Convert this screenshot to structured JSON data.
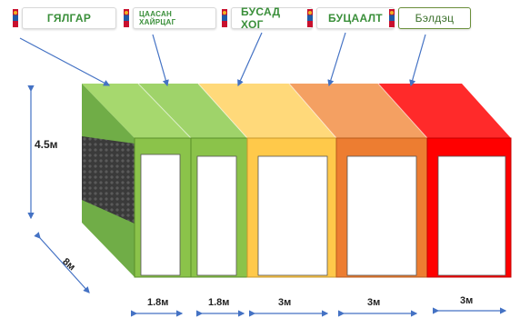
{
  "tags": [
    {
      "text": "ГЯЛГАР",
      "color": "#3a8f3a"
    },
    {
      "text": "ЦААСАН ХАЙРЦАГ",
      "color": "#3a8f3a"
    },
    {
      "text": "БУСАД ХОГ",
      "color": "#3a8f3a"
    },
    {
      "text": "БУЦААЛТ",
      "color": "#3a8f3a"
    },
    {
      "text": "Бэлдэц",
      "color": "#3a6f2a"
    }
  ],
  "dimensions": {
    "height": "4.5м",
    "depth": "8м",
    "widths": [
      "1.8м",
      "1.8м",
      "3м",
      "3м",
      "3м"
    ]
  },
  "compartment_colors": {
    "green_roof": "#a6d86e",
    "green_front": "#8bc34a",
    "yellow_roof": "#ffd97a",
    "yellow_front": "#ffc94a",
    "orange_roof": "#f4a062",
    "orange_front": "#ed7d31",
    "red_roof": "#ff2a2a",
    "red_front": "#ff0000",
    "side_wall": "#70ad47"
  }
}
